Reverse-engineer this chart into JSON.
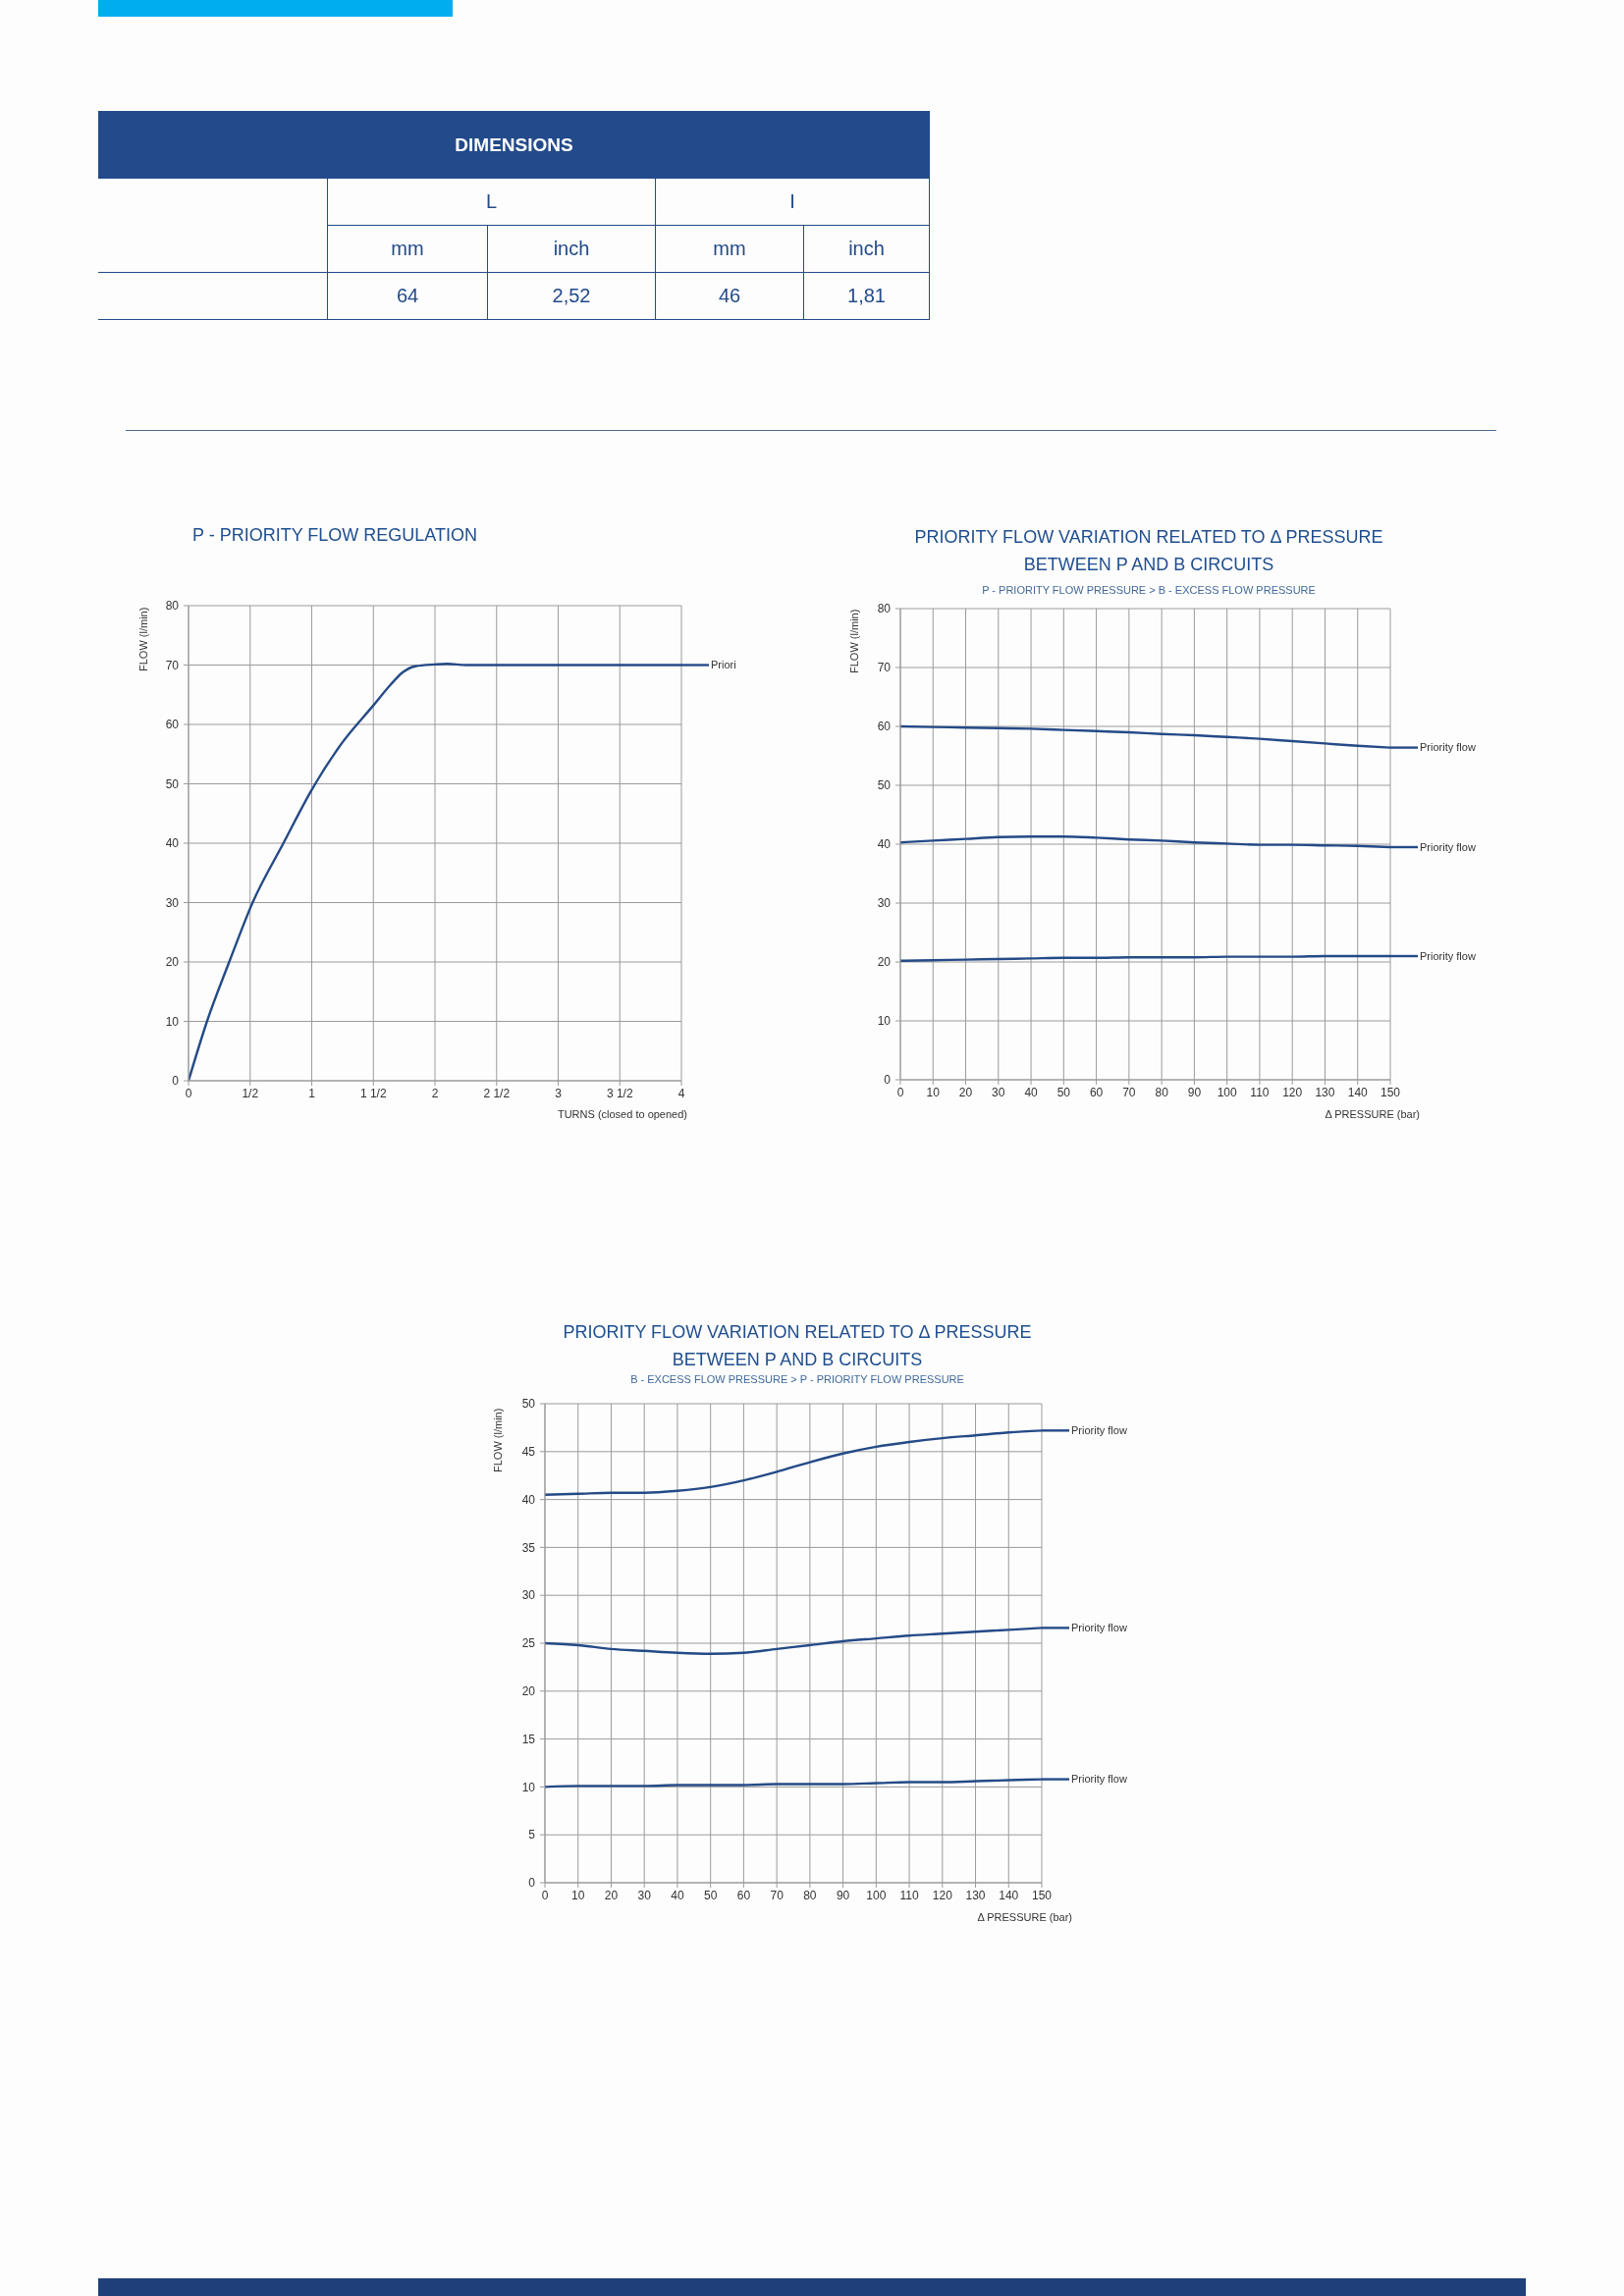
{
  "chart_data": [
    {
      "type": "other",
      "title": "DIMENSIONS",
      "annotations": [
        "L",
        "I"
      ],
      "categories": [
        "mm",
        "inch",
        "mm",
        "inch"
      ],
      "value_labels": [
        "64",
        "2,52",
        "46",
        "1,81"
      ]
    },
    {
      "type": "line",
      "title": "P - PRIORITY FLOW REGULATION",
      "xlabel": "TURNS (closed to opened)",
      "ylabel": "FLOW (l/min)",
      "x": [
        0,
        0.15,
        0.33,
        0.52,
        0.77,
        1,
        1.25,
        1.5,
        1.64,
        1.74,
        1.84,
        2,
        2.1,
        2.25,
        2.5,
        3,
        3.5,
        4
      ],
      "series": [
        {
          "name": "Priori",
          "color": "#244a87",
          "values": [
            0,
            10,
            20,
            30,
            40,
            49,
            57,
            63.2,
            66.7,
            68.8,
            69.8,
            70.1,
            70.2,
            70,
            70,
            70,
            70,
            70
          ]
        }
      ],
      "xlim": [
        0,
        4
      ],
      "xticks": [
        0,
        {
          "value": 0.5,
          "label": "1/2"
        },
        1,
        {
          "value": 1.5,
          "label": "1 1/2"
        },
        2,
        {
          "value": 2.5,
          "label": "2 1/2"
        },
        3,
        {
          "value": 3.5,
          "label": "3 1/2"
        },
        4
      ],
      "ylim": [
        0,
        80
      ],
      "yticks": [
        0,
        10,
        20,
        30,
        40,
        50,
        60,
        70,
        80
      ],
      "grid": true
    },
    {
      "type": "line",
      "title": "PRIORITY FLOW VARIATION RELATED TO Δ PRESSURE\nBETWEEN P AND B CIRCUITS",
      "subtitle": "P - PRIORITY FLOW PRESSURE > B - EXCESS FLOW PRESSURE",
      "xlabel": "Δ PRESSURE (bar)",
      "ylabel": "FLOW (l/min)",
      "x": [
        0,
        10,
        20,
        30,
        40,
        50,
        60,
        70,
        80,
        90,
        100,
        110,
        120,
        130,
        140,
        150
      ],
      "series": [
        {
          "name": "Priority flow",
          "color": "#244a87",
          "values": [
            60,
            59.9,
            59.8,
            59.7,
            59.6,
            59.4,
            59.2,
            59.0,
            58.7,
            58.5,
            58.2,
            57.9,
            57.5,
            57.1,
            56.7,
            56.4
          ]
        },
        {
          "name": "Priority flow",
          "color": "#244a87",
          "values": [
            40.3,
            40.6,
            40.9,
            41.2,
            41.3,
            41.3,
            41.1,
            40.8,
            40.6,
            40.3,
            40.1,
            39.9,
            39.9,
            39.8,
            39.7,
            39.5
          ]
        },
        {
          "name": "Priority flow",
          "color": "#244a87",
          "values": [
            20.2,
            20.3,
            20.4,
            20.5,
            20.6,
            20.7,
            20.7,
            20.8,
            20.8,
            20.8,
            20.9,
            20.9,
            20.9,
            21.0,
            21.0,
            21.0
          ]
        }
      ],
      "xlim": [
        0,
        150
      ],
      "xticks": [
        0,
        10,
        20,
        30,
        40,
        50,
        60,
        70,
        80,
        90,
        100,
        110,
        120,
        130,
        140,
        150
      ],
      "ylim": [
        0,
        80
      ],
      "yticks": [
        0,
        10,
        20,
        30,
        40,
        50,
        60,
        70,
        80
      ],
      "grid": true
    },
    {
      "type": "line",
      "title": "PRIORITY FLOW VARIATION RELATED TO Δ PRESSURE\nBETWEEN P AND B CIRCUITS",
      "subtitle": "B - EXCESS FLOW PRESSURE > P - PRIORITY FLOW PRESSURE",
      "xlabel": "Δ PRESSURE (bar)",
      "ylabel": "FLOW (l/min)",
      "x": [
        0,
        10,
        20,
        30,
        40,
        50,
        60,
        70,
        80,
        90,
        100,
        110,
        120,
        130,
        140,
        150
      ],
      "series": [
        {
          "name": "Priority flow",
          "color": "#244a87",
          "values": [
            40.5,
            40.6,
            40.7,
            40.7,
            40.9,
            41.3,
            42.0,
            42.9,
            43.9,
            44.8,
            45.5,
            46.0,
            46.4,
            46.7,
            47.0,
            47.2
          ]
        },
        {
          "name": "Priority flow",
          "color": "#244a87",
          "values": [
            25.0,
            24.8,
            24.4,
            24.2,
            24.0,
            23.9,
            24.0,
            24.4,
            24.8,
            25.2,
            25.5,
            25.8,
            26.0,
            26.2,
            26.4,
            26.6
          ]
        },
        {
          "name": "Priority flow",
          "color": "#244a87",
          "values": [
            10.0,
            10.1,
            10.1,
            10.1,
            10.2,
            10.2,
            10.2,
            10.3,
            10.3,
            10.3,
            10.4,
            10.5,
            10.5,
            10.6,
            10.7,
            10.8
          ]
        }
      ],
      "xlim": [
        0,
        150
      ],
      "xticks": [
        0,
        10,
        20,
        30,
        40,
        50,
        60,
        70,
        80,
        90,
        100,
        110,
        120,
        130,
        140,
        150
      ],
      "ylim": [
        0,
        50
      ],
      "yticks": [
        0,
        5,
        10,
        15,
        20,
        25,
        30,
        35,
        40,
        45,
        50
      ],
      "grid": true
    }
  ]
}
